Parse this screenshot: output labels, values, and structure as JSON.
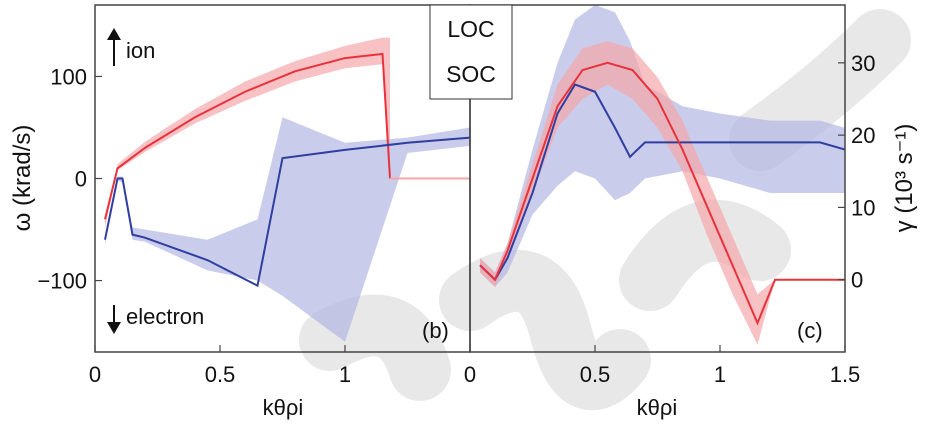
{
  "chart_data": [
    {
      "panel_label": "(b)",
      "type": "line",
      "xlabel": "kθρi",
      "ylabel": "ω (krad/s)",
      "xlim": [
        0,
        1.5
      ],
      "ylim": [
        -170,
        170
      ],
      "x_ticks": [
        "0",
        "0.5",
        "1"
      ],
      "y_ticks": [
        "−100",
        "0",
        "100"
      ],
      "y_tick_values": [
        -100,
        0,
        100
      ],
      "x_tick_values": [
        0,
        0.5,
        1
      ],
      "annotations": {
        "up": "ion",
        "down": "electron"
      },
      "series": [
        {
          "name": "SOC",
          "color": "#e8323c",
          "band_color": "#f5a6aa",
          "x": [
            0.04,
            0.09,
            0.2,
            0.4,
            0.6,
            0.8,
            1.0,
            1.15,
            1.18
          ],
          "y": [
            -40,
            10,
            30,
            60,
            85,
            105,
            118,
            122,
            0
          ],
          "upper": [
            -38,
            14,
            36,
            68,
            95,
            115,
            130,
            138,
            138
          ],
          "lower": [
            -48,
            8,
            26,
            54,
            76,
            95,
            108,
            112,
            0
          ],
          "tail": {
            "x": [
              1.18,
              1.23,
              1.5
            ],
            "y": [
              0,
              0,
              0
            ]
          }
        },
        {
          "name": "LOC",
          "color": "#2f3fa0",
          "band_color": "#b4b6e2",
          "x": [
            0.04,
            0.09,
            0.11,
            0.15,
            0.2,
            0.45,
            0.65,
            0.75,
            1.0,
            1.25,
            1.5
          ],
          "y": [
            -60,
            0,
            0,
            -55,
            -58,
            -80,
            -105,
            20,
            28,
            35,
            40
          ],
          "upper": [
            -55,
            2,
            2,
            -48,
            -50,
            -60,
            -40,
            60,
            35,
            40,
            50
          ],
          "lower": [
            -65,
            -2,
            -4,
            -60,
            -62,
            -90,
            -100,
            -115,
            -160,
            25,
            32
          ]
        }
      ]
    },
    {
      "panel_label": "(c)",
      "type": "line",
      "xlabel": "kθρi",
      "ylabel": "γ (10³ s⁻¹)",
      "xlim": [
        0,
        1.5
      ],
      "ylim": [
        -10,
        38
      ],
      "x_ticks": [
        "0",
        "0.5",
        "1",
        "1.5"
      ],
      "y_ticks": [
        "0",
        "10",
        "20",
        "30"
      ],
      "x_tick_values": [
        0,
        0.5,
        1,
        1.5
      ],
      "y_tick_values": [
        0,
        10,
        20,
        30
      ],
      "series": [
        {
          "name": "LOC",
          "color": "#2f3fa0",
          "band_color": "#b4b6e2",
          "x": [
            0.04,
            0.1,
            0.15,
            0.25,
            0.35,
            0.42,
            0.5,
            0.58,
            0.64,
            0.7,
            0.85,
            1.0,
            1.2,
            1.4,
            1.5
          ],
          "y": [
            2,
            0,
            3,
            12,
            23,
            27,
            26,
            21,
            17,
            19,
            19,
            19,
            19,
            19,
            18
          ],
          "upper": [
            3,
            1,
            5,
            18,
            30,
            36,
            38,
            37,
            33,
            27,
            24,
            23,
            22,
            22,
            21
          ],
          "lower": [
            1,
            -1,
            1,
            9,
            13,
            15,
            14,
            11,
            12,
            14,
            15,
            14,
            12,
            12,
            12
          ]
        },
        {
          "name": "SOC",
          "color": "#e8323c",
          "band_color": "#f5a6aa",
          "x": [
            0.04,
            0.1,
            0.15,
            0.25,
            0.35,
            0.45,
            0.55,
            0.65,
            0.75,
            0.85,
            0.95,
            1.05,
            1.15,
            1.22,
            1.5
          ],
          "y": [
            2,
            0,
            4,
            14,
            24,
            29,
            30,
            29,
            25,
            18,
            10,
            2,
            -6,
            0,
            0
          ],
          "upper": [
            3,
            1,
            5,
            16,
            27,
            32,
            33,
            32,
            28,
            22,
            14,
            6,
            -2,
            0,
            0
          ],
          "lower": [
            1,
            -1,
            3,
            12,
            21,
            25,
            27,
            25,
            21,
            15,
            6,
            -2,
            -9,
            0,
            0
          ]
        }
      ]
    }
  ],
  "legend": {
    "items": [
      {
        "label": "LOC",
        "color": "#2f3fa0"
      },
      {
        "label": "SOC",
        "color": "#e8323c"
      }
    ]
  }
}
